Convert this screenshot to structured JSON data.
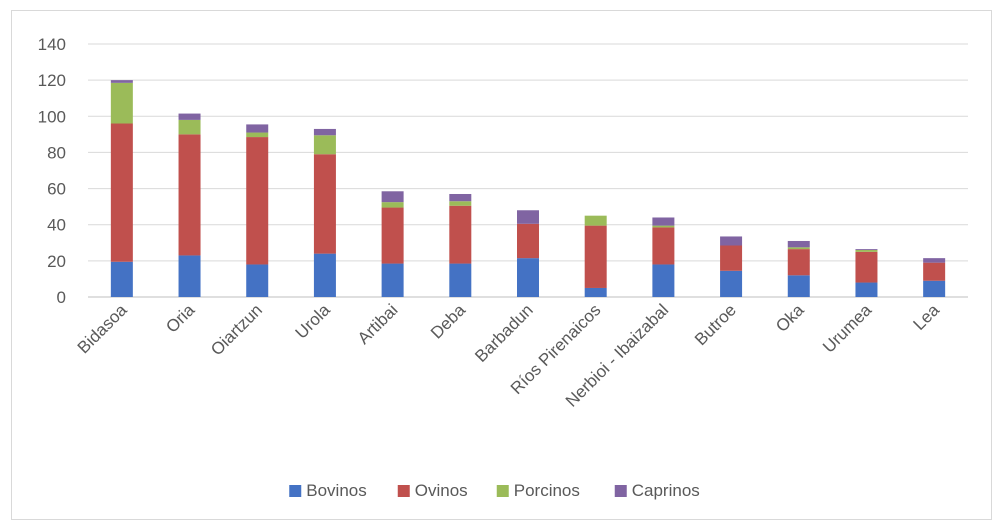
{
  "chart_data": {
    "type": "bar",
    "stacked": true,
    "title": "",
    "xlabel": "",
    "ylabel": "",
    "ylim": [
      0,
      140
    ],
    "yticks": [
      0,
      20,
      40,
      60,
      80,
      100,
      120,
      140
    ],
    "grid": true,
    "legend_position": "bottom",
    "categories": [
      "Bidasoa",
      "Oria",
      "Oiartzun",
      "Urola",
      "Artibai",
      "Deba",
      "Barbadun",
      "Ríos Pirenaicos",
      "Nerbioi - Ibaizabal",
      "Butroe",
      "Oka",
      "Urumea",
      "Lea"
    ],
    "series": [
      {
        "name": "Bovinos",
        "color": "#4472c4",
        "values": [
          19.5,
          23,
          18,
          24,
          18.5,
          18.5,
          21.5,
          5,
          18,
          14.5,
          12,
          8,
          9
        ]
      },
      {
        "name": "Ovinos",
        "color": "#c0504d",
        "values": [
          76.5,
          67,
          70.5,
          55,
          31,
          32,
          19,
          34.5,
          20.5,
          14,
          14.5,
          17,
          10
        ]
      },
      {
        "name": "Porcinos",
        "color": "#9bbb59",
        "values": [
          22.5,
          8,
          2.5,
          10.5,
          3,
          2.5,
          0,
          5.5,
          1,
          0,
          1,
          1,
          0
        ]
      },
      {
        "name": "Caprinos",
        "color": "#8064a2",
        "values": [
          1.5,
          3.5,
          4.5,
          3.5,
          6,
          4,
          7.5,
          0,
          4.5,
          5,
          3.5,
          0.5,
          2.5
        ]
      }
    ]
  }
}
